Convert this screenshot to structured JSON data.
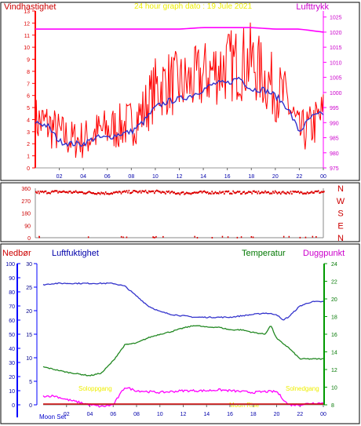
{
  "header": {
    "left_label": "Vindhastighet",
    "title": "24 hour graph dato : 19 Jule 2021",
    "right_label": "Lufttrykk"
  },
  "bottom_header": {
    "precip_label": "Nedbør",
    "humidity_label": "Luftfuktighet",
    "temperature_label": "Temperatur",
    "dewpoint_label": "Duggpunkt"
  },
  "annotations": {
    "sunrise_left": "Soloppgang",
    "sunset_right": "Solnedgang",
    "moon_set": "Moon Set",
    "moon_rise": "Moon Rise"
  },
  "colors": {
    "wind": "#ff0000",
    "wind_avg": "#3333cc",
    "pressure": "#ff00ff",
    "direction": "#dd0000",
    "humidity": "#3333cc",
    "temperature": "#228822",
    "dewpoint": "#ff00ff",
    "precip": "#cc0000",
    "title": "#eeee00",
    "axis_left_blue": "#0000ff",
    "axis_right_green": "#009900"
  },
  "chart_data": [
    {
      "type": "line",
      "title": "24 hour graph dato : 19 Jule 2021",
      "x_ticks": [
        "02",
        "04",
        "06",
        "08",
        "10",
        "12",
        "14",
        "16",
        "18",
        "20",
        "22",
        "00"
      ],
      "y_left_ticks": [
        0,
        1,
        2,
        3,
        4,
        5,
        6,
        7,
        8,
        9,
        10,
        11,
        12,
        13
      ],
      "y_right_ticks": [
        975,
        980,
        985,
        990,
        995,
        1000,
        1005,
        1010,
        1015,
        1020,
        1025
      ],
      "ylim_left": [
        0,
        13
      ],
      "ylim_right": [
        975,
        1027
      ],
      "series": [
        {
          "name": "Vindhastighet",
          "axis": "left",
          "hours": [
            0,
            1,
            2,
            3,
            4,
            5,
            6,
            7,
            8,
            9,
            10,
            11,
            12,
            13,
            14,
            15,
            16,
            17,
            18,
            19,
            20,
            21,
            22,
            23,
            24
          ],
          "values": [
            3.5,
            3.2,
            2.5,
            2.0,
            2.0,
            2.5,
            2.8,
            3.0,
            3.3,
            4.2,
            6.0,
            6.5,
            6.3,
            6.5,
            7.0,
            7.5,
            7.8,
            8.0,
            8.2,
            7.0,
            6.0,
            5.0,
            2.5,
            3.0,
            4.0
          ]
        },
        {
          "name": "",
          "axis": "left",
          "hours": [
            0,
            1,
            2,
            3,
            4,
            5,
            6,
            7,
            8,
            9,
            10,
            11,
            12,
            13,
            14,
            15,
            16,
            17,
            18,
            19,
            20,
            21,
            22,
            23,
            24
          ],
          "values": [
            3.8,
            3.5,
            2.2,
            2.0,
            2.0,
            2.5,
            2.5,
            2.8,
            3.0,
            3.8,
            5.0,
            5.5,
            5.7,
            6.0,
            6.5,
            7.0,
            7.0,
            7.5,
            6.5,
            6.5,
            6.0,
            5.0,
            3.0,
            4.2,
            4.5
          ]
        },
        {
          "name": "Lufttrykk",
          "axis": "right",
          "hours": [
            0,
            2,
            4,
            6,
            8,
            10,
            12,
            14,
            16,
            18,
            20,
            22,
            23,
            24
          ],
          "values": [
            1021,
            1021,
            1021,
            1021,
            1021,
            1021,
            1021,
            1021.5,
            1021.5,
            1021.5,
            1021,
            1021,
            1020.5,
            1020
          ]
        }
      ]
    },
    {
      "type": "scatter",
      "title": "",
      "y_ticks": [
        0,
        90,
        180,
        270,
        360
      ],
      "y_right_labels": [
        "N",
        "W",
        "S",
        "E",
        "N"
      ],
      "series": [
        {
          "name": "",
          "hours": [
            0,
            2,
            4,
            6,
            8,
            10,
            12,
            14,
            16,
            18,
            20,
            22,
            24
          ],
          "values": [
            330,
            335,
            330,
            325,
            335,
            335,
            325,
            330,
            330,
            330,
            330,
            330,
            335
          ]
        }
      ]
    },
    {
      "type": "line",
      "title": "",
      "x_ticks": [
        "02",
        "04",
        "06",
        "08",
        "10",
        "12",
        "14",
        "16",
        "18",
        "20",
        "22",
        "00"
      ],
      "y_left1_ticks": [
        0,
        10,
        20,
        30,
        40,
        50,
        60,
        70,
        80,
        90,
        100
      ],
      "y_left2_ticks": [
        0,
        5,
        10,
        15,
        20,
        25,
        30
      ],
      "y_right_ticks": [
        8,
        10,
        12,
        14,
        16,
        18,
        20,
        22,
        24
      ],
      "series": [
        {
          "name": "Luftfuktighet",
          "axis": "left1",
          "hours": [
            0,
            1,
            2,
            3,
            4,
            5,
            6,
            7,
            8,
            9,
            10,
            11,
            12,
            13,
            14,
            15,
            16,
            17,
            18,
            19,
            20,
            20.5,
            21,
            22,
            23,
            24
          ],
          "values": [
            85,
            86,
            86,
            86,
            86,
            86,
            86,
            84,
            77,
            70,
            66,
            64,
            63,
            62,
            62,
            62,
            62,
            63,
            64,
            65,
            64,
            60,
            62,
            70,
            73,
            73
          ]
        },
        {
          "name": "Temperatur",
          "axis": "right",
          "hours": [
            0,
            1,
            2,
            3,
            4,
            5,
            6,
            7,
            8,
            9,
            10,
            11,
            12,
            13,
            14,
            15,
            16,
            17,
            18,
            19,
            19.5,
            20,
            21,
            22,
            23,
            24
          ],
          "values": [
            12.3,
            12.0,
            11.7,
            11.5,
            11.3,
            11.6,
            13.0,
            14.8,
            15.0,
            15.6,
            16.0,
            16.3,
            16.7,
            17.0,
            16.8,
            16.8,
            16.5,
            16.5,
            16.2,
            16.0,
            17.0,
            15.5,
            14.5,
            13.2,
            13.2,
            13.2
          ]
        },
        {
          "name": "Duggpunkt",
          "axis": "right",
          "hours": [
            0,
            1,
            2,
            3,
            4,
            5,
            6,
            7,
            8,
            9,
            10,
            11,
            12,
            13,
            14,
            15,
            16,
            17,
            18,
            19,
            20,
            21,
            22,
            23,
            24
          ],
          "values": [
            9.0,
            9.0,
            8.6,
            8.3,
            8.0,
            7.8,
            8.0,
            10.0,
            9.6,
            9.5,
            9.4,
            9.5,
            9.6,
            9.6,
            9.6,
            9.7,
            9.6,
            9.5,
            9.4,
            9.5,
            9.5,
            8.0,
            8.0,
            8.2,
            8.2
          ]
        },
        {
          "name": "Nedbør",
          "axis": "left2",
          "hours": [
            0,
            24
          ],
          "values": [
            0,
            0
          ]
        }
      ]
    }
  ]
}
